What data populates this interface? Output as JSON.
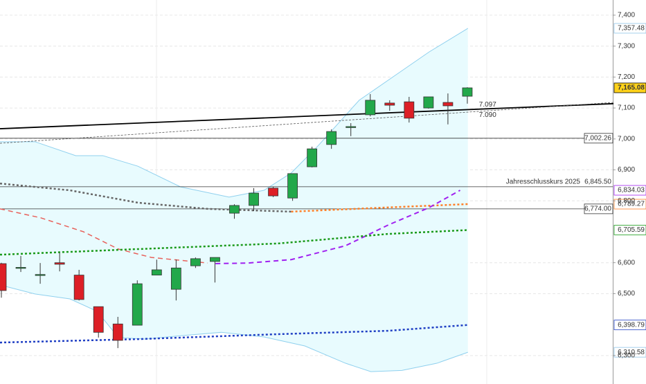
{
  "chart_data": {
    "type": "candlestick",
    "open": [
      6597,
      6582,
      6560,
      6600,
      6560,
      6458,
      6402,
      6398,
      6560,
      6514,
      6590,
      6604,
      6760,
      6785,
      6841,
      6809,
      6910,
      6982,
      7038,
      7078,
      7116,
      7120,
      7100,
      7118,
      7138
    ],
    "high": [
      6600,
      6622,
      6599,
      6633,
      6577,
      6458,
      6425,
      6543,
      6610,
      6610,
      6617,
      6617,
      6789,
      6841,
      6845,
      6888,
      6975,
      7031,
      7051,
      7145,
      7125,
      7136,
      7136,
      7147,
      7167
    ],
    "low": [
      6487,
      6570,
      6532,
      6572,
      6478,
      6358,
      6324,
      6398,
      6560,
      6478,
      6583,
      6536,
      6742,
      6767,
      6812,
      6800,
      6908,
      6968,
      7009,
      7073,
      7091,
      7053,
      7098,
      7047,
      7114
    ],
    "close": [
      6510,
      6585,
      6562,
      6595,
      6481,
      6375,
      6349,
      6532,
      6577,
      6583,
      6613,
      6617,
      6785,
      6825,
      6816,
      6888,
      6968,
      7024,
      7040,
      7125,
      7109,
      7067,
      7136,
      7107,
      7165.08
    ],
    "up_color": "#22a84a",
    "down_color": "#dd1f26",
    "ylim": [
      6208,
      7449
    ],
    "yticks": [
      {
        "value": 7400,
        "label": "7,400"
      },
      {
        "value": 7300,
        "label": "7,300"
      },
      {
        "value": 7200,
        "label": "7,200"
      },
      {
        "value": 7100,
        "label": "7,100"
      },
      {
        "value": 7000,
        "label": "7,000"
      },
      {
        "value": 6900,
        "label": "6,900"
      },
      {
        "value": 6800,
        "label": "6,800"
      },
      {
        "value": 6600,
        "label": "6,600"
      },
      {
        "value": 6500,
        "label": "6,500"
      },
      {
        "value": 6300,
        "label": "6,300"
      }
    ],
    "grid": true,
    "band": {
      "fill": "#e8fbfe",
      "color": "#8fd0ee",
      "upper": {
        "x": [
          0,
          1.8,
          3.9,
          5.3,
          7.1,
          9.3,
          11.8,
          13.6,
          15,
          16.4,
          18.5,
          20.3,
          22.1,
          24.1
        ],
        "values": [
          6991,
          6991,
          6946,
          6946,
          6912,
          6845,
          6812,
          6834,
          6890,
          6979,
          7125,
          7203,
          7281,
          7357.48
        ]
      },
      "lower": {
        "x": [
          0,
          1.8,
          3.6,
          5,
          6.1,
          7.5,
          9.3,
          11.4,
          13.6,
          15.7,
          17.8,
          19.1,
          20.7,
          22.5,
          24.1
        ],
        "values": [
          6528,
          6499,
          6483,
          6443,
          6358,
          6353,
          6364,
          6375,
          6360,
          6331,
          6275,
          6248,
          6252,
          6275,
          6310.58
        ]
      }
    },
    "lines": [
      {
        "color": "#000000",
        "width": 1.8,
        "dash": "none",
        "x": [
          0,
          31.6
        ],
        "values": [
          7033,
          7114
        ]
      },
      {
        "color": "#555555",
        "width": 0.8,
        "dash": "3,2",
        "x": [
          0,
          31.6
        ],
        "values": [
          6986,
          7118
        ]
      },
      {
        "color": "#666666",
        "width": 2.5,
        "dash": "3,3",
        "x": [
          0,
          3.6,
          7.1,
          10.7,
          15
        ],
        "values": [
          6856,
          6834,
          6794,
          6774,
          6765
        ]
      },
      {
        "color": "#ff7f27",
        "width": 2.5,
        "dash": "3,3",
        "x": [
          15,
          19,
          24.1
        ],
        "values": [
          6765,
          6776,
          6789.27
        ]
      },
      {
        "color": "#e8605a",
        "width": 1.5,
        "dash": "7,5",
        "x": [
          0,
          2.1,
          4.3,
          6.1,
          7.8,
          10.7
        ],
        "values": [
          6774,
          6745,
          6700,
          6644,
          6617,
          6599
        ]
      },
      {
        "color": "#a020f0",
        "width": 2,
        "dash": "7,5",
        "x": [
          11.1,
          12.8,
          15,
          17.8,
          20,
          22.1,
          23.7
        ],
        "values": [
          6597,
          6599,
          6610,
          6655,
          6722,
          6778,
          6834.03
        ]
      },
      {
        "color": "#1a9a1a",
        "width": 2.5,
        "dash": "3,3",
        "x": [
          0,
          7.1,
          14.3,
          20,
          24.1
        ],
        "values": [
          6626,
          6644,
          6662,
          6693,
          6705.59
        ]
      },
      {
        "color": "#1f3fc4",
        "width": 2.5,
        "dash": "3,3",
        "x": [
          0,
          7.1,
          14.3,
          20,
          24.1
        ],
        "values": [
          6342,
          6353,
          6369,
          6380,
          6398.79
        ]
      }
    ],
    "line_labels": [
      {
        "value": 7097,
        "label": "7.097",
        "x": 24.6
      },
      {
        "value": 7090,
        "label": "7.090",
        "x": 24.6
      }
    ],
    "hlines": [
      {
        "value": 7002.26,
        "label": "7,002.26"
      },
      {
        "value": 6845.5,
        "label": "6,845.50",
        "text": "Jahresschlusskurs 2025"
      },
      {
        "value": 6774,
        "label": "6,774.00"
      }
    ],
    "axis_tags": [
      {
        "value": 7357.48,
        "label": "7,357.48",
        "color": "#8fc4e8"
      },
      {
        "value": 7165.08,
        "label": "7,165.08",
        "color": "#000000",
        "fill": "#ffd21a"
      },
      {
        "value": 6834.03,
        "label": "6,834.03",
        "color": "#a020f0"
      },
      {
        "value": 6789.27,
        "label": "6,789.27",
        "color": "#ff7f27"
      },
      {
        "value": 6705.59,
        "label": "6,705.59",
        "color": "#1a9a1a"
      },
      {
        "value": 6398.79,
        "label": "6,398.79",
        "color": "#1f3fc4"
      },
      {
        "value": 6310.58,
        "label": "6,310.58",
        "color": "#8fc4e8"
      }
    ]
  }
}
